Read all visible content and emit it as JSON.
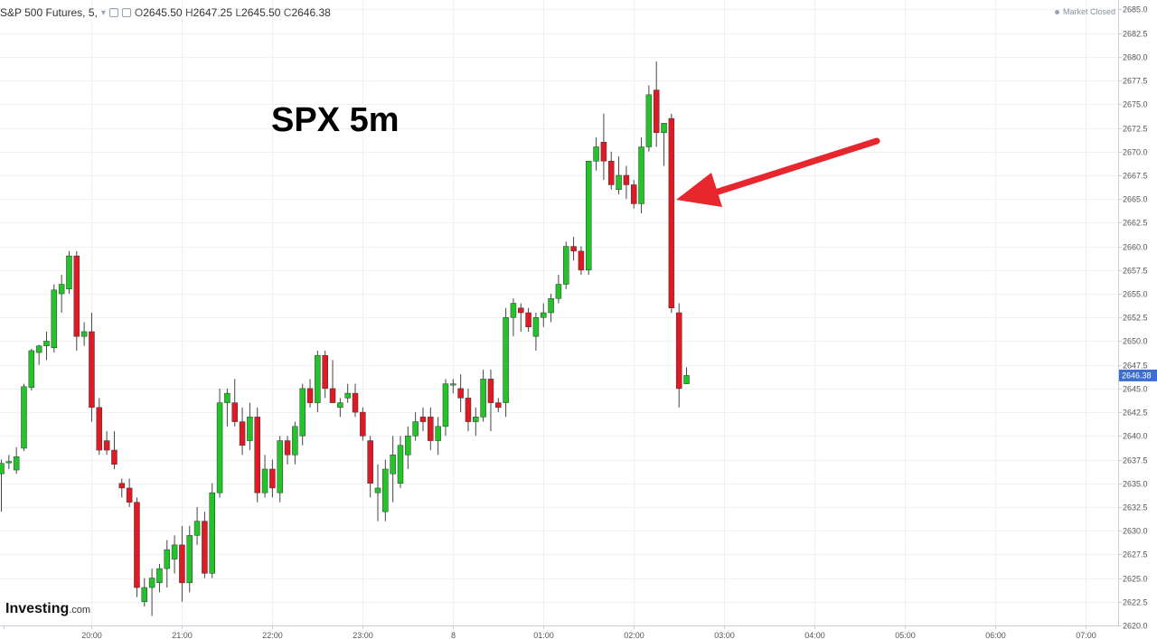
{
  "header": {
    "symbol": "S&P 500 Futures, 5,",
    "open_label": "O",
    "open": "2645.50",
    "high_label": "H",
    "high": "2647.25",
    "low_label": "L",
    "low": "2645.50",
    "close_label": "C",
    "close": "2646.38"
  },
  "status": {
    "market": "Market Closed"
  },
  "annotation": {
    "title": "SPX 5m"
  },
  "brand": {
    "name": "Investing",
    "domain": ".com"
  },
  "chart_data": {
    "type": "candlestick",
    "title": "SPX 5m",
    "up_color": "#22c42a",
    "down_color": "#e01a25",
    "last_price_color": "#3d6ecb",
    "last_price_label": "2646.38",
    "ylim": [
      2620,
      2686
    ],
    "y_ticks": [
      2620.0,
      2622.5,
      2625.0,
      2627.5,
      2630.0,
      2632.5,
      2635.0,
      2637.5,
      2640.0,
      2642.5,
      2645.0,
      2647.5,
      2650.0,
      2652.5,
      2655.0,
      2657.5,
      2660.0,
      2662.5,
      2665.0,
      2667.5,
      2670.0,
      2672.5,
      2675.0,
      2677.5,
      2680.0,
      2682.5,
      2685.0
    ],
    "y_tick_labels": [
      "2620.0",
      "2622.5",
      "2625.0",
      "2627.5",
      "2630.0",
      "2632.5",
      "2635.0",
      "2637.5",
      "2640.0",
      "2642.5",
      "2645.0",
      "2647.5",
      "2650.0",
      "2652.5",
      "2655.0",
      "2657.5",
      "2660.0",
      "2662.5",
      "2665.0",
      "2667.5",
      "2670.0",
      "2672.5",
      "2675.0",
      "2677.5",
      "2680.0",
      "2682.5",
      "2685.0"
    ],
    "x_tick_labels": [
      "20:00",
      "21:00",
      "22:00",
      "23:00",
      "8",
      "01:00",
      "02:00",
      "03:00",
      "04:00",
      "05:00",
      "06:00",
      "07:00"
    ],
    "x_tick_bars": [
      12,
      24,
      36,
      48,
      60,
      72,
      84,
      96,
      108,
      120,
      132,
      144
    ],
    "grid": true,
    "candles": [
      {
        "o": 2636.0,
        "h": 2637.5,
        "l": 2632.0,
        "c": 2637.1
      },
      {
        "o": 2637.2,
        "h": 2638.0,
        "l": 2636.5,
        "c": 2637.3
      },
      {
        "o": 2636.4,
        "h": 2638.8,
        "l": 2636.0,
        "c": 2637.8
      },
      {
        "o": 2638.7,
        "h": 2645.5,
        "l": 2638.4,
        "c": 2645.2
      },
      {
        "o": 2645.1,
        "h": 2649.2,
        "l": 2644.8,
        "c": 2649.0
      },
      {
        "o": 2648.8,
        "h": 2649.6,
        "l": 2647.5,
        "c": 2649.5
      },
      {
        "o": 2649.5,
        "h": 2651.0,
        "l": 2648.0,
        "c": 2650.0
      },
      {
        "o": 2649.3,
        "h": 2656.0,
        "l": 2648.8,
        "c": 2655.4
      },
      {
        "o": 2655.0,
        "h": 2657.0,
        "l": 2653.0,
        "c": 2656.0
      },
      {
        "o": 2655.5,
        "h": 2659.5,
        "l": 2655.0,
        "c": 2659.0
      },
      {
        "o": 2659.0,
        "h": 2659.5,
        "l": 2649.0,
        "c": 2650.5
      },
      {
        "o": 2650.5,
        "h": 2652.0,
        "l": 2649.5,
        "c": 2651.0
      },
      {
        "o": 2651.0,
        "h": 2653.0,
        "l": 2641.5,
        "c": 2643.0
      },
      {
        "o": 2643.0,
        "h": 2644.0,
        "l": 2638.0,
        "c": 2638.5
      },
      {
        "o": 2639.5,
        "h": 2640.5,
        "l": 2638.0,
        "c": 2638.5
      },
      {
        "o": 2638.5,
        "h": 2640.5,
        "l": 2636.5,
        "c": 2637.0
      },
      {
        "o": 2635.0,
        "h": 2635.5,
        "l": 2633.5,
        "c": 2634.5
      },
      {
        "o": 2634.5,
        "h": 2635.5,
        "l": 2632.5,
        "c": 2633.0
      },
      {
        "o": 2633.0,
        "h": 2633.5,
        "l": 2623.0,
        "c": 2624.0
      },
      {
        "o": 2622.5,
        "h": 2625.0,
        "l": 2622.0,
        "c": 2624.0
      },
      {
        "o": 2624.0,
        "h": 2626.0,
        "l": 2621.0,
        "c": 2625.0
      },
      {
        "o": 2624.5,
        "h": 2626.5,
        "l": 2623.5,
        "c": 2626.0
      },
      {
        "o": 2626.0,
        "h": 2629.0,
        "l": 2624.0,
        "c": 2628.0
      },
      {
        "o": 2627.0,
        "h": 2629.5,
        "l": 2625.5,
        "c": 2628.5
      },
      {
        "o": 2628.5,
        "h": 2630.5,
        "l": 2622.5,
        "c": 2624.5
      },
      {
        "o": 2624.5,
        "h": 2630.5,
        "l": 2623.5,
        "c": 2629.5
      },
      {
        "o": 2629.5,
        "h": 2632.5,
        "l": 2628.5,
        "c": 2631.0
      },
      {
        "o": 2631.0,
        "h": 2632.0,
        "l": 2625.0,
        "c": 2625.5
      },
      {
        "o": 2625.5,
        "h": 2635.0,
        "l": 2625.0,
        "c": 2634.0
      },
      {
        "o": 2634.0,
        "h": 2645.0,
        "l": 2633.5,
        "c": 2643.5
      },
      {
        "o": 2643.5,
        "h": 2645.0,
        "l": 2641.0,
        "c": 2644.5
      },
      {
        "o": 2643.5,
        "h": 2646.0,
        "l": 2641.0,
        "c": 2641.5
      },
      {
        "o": 2641.5,
        "h": 2643.0,
        "l": 2638.0,
        "c": 2639.0
      },
      {
        "o": 2639.5,
        "h": 2643.5,
        "l": 2638.5,
        "c": 2642.0
      },
      {
        "o": 2642.0,
        "h": 2643.0,
        "l": 2633.0,
        "c": 2634.0
      },
      {
        "o": 2634.0,
        "h": 2638.0,
        "l": 2633.5,
        "c": 2636.5
      },
      {
        "o": 2636.5,
        "h": 2637.5,
        "l": 2633.5,
        "c": 2634.5
      },
      {
        "o": 2634.0,
        "h": 2640.0,
        "l": 2633.0,
        "c": 2639.5
      },
      {
        "o": 2639.5,
        "h": 2640.0,
        "l": 2637.0,
        "c": 2638.0
      },
      {
        "o": 2638.0,
        "h": 2641.5,
        "l": 2637.0,
        "c": 2641.0
      },
      {
        "o": 2640.0,
        "h": 2645.5,
        "l": 2639.0,
        "c": 2645.0
      },
      {
        "o": 2645.0,
        "h": 2646.0,
        "l": 2643.0,
        "c": 2643.5
      },
      {
        "o": 2643.5,
        "h": 2649.0,
        "l": 2642.5,
        "c": 2648.5
      },
      {
        "o": 2648.5,
        "h": 2649.0,
        "l": 2644.0,
        "c": 2645.0
      },
      {
        "o": 2645.0,
        "h": 2648.0,
        "l": 2643.5,
        "c": 2643.5
      },
      {
        "o": 2643.0,
        "h": 2644.0,
        "l": 2642.0,
        "c": 2643.5
      },
      {
        "o": 2644.0,
        "h": 2645.5,
        "l": 2643.5,
        "c": 2644.5
      },
      {
        "o": 2644.5,
        "h": 2645.5,
        "l": 2642.0,
        "c": 2642.5
      },
      {
        "o": 2642.5,
        "h": 2643.0,
        "l": 2639.5,
        "c": 2640.0
      },
      {
        "o": 2639.5,
        "h": 2640.0,
        "l": 2633.5,
        "c": 2635.0
      },
      {
        "o": 2634.0,
        "h": 2637.0,
        "l": 2631.0,
        "c": 2634.5
      },
      {
        "o": 2632.0,
        "h": 2637.5,
        "l": 2631.0,
        "c": 2636.5
      },
      {
        "o": 2636.0,
        "h": 2640.0,
        "l": 2633.0,
        "c": 2638.0
      },
      {
        "o": 2635.0,
        "h": 2640.0,
        "l": 2634.5,
        "c": 2639.0
      },
      {
        "o": 2638.0,
        "h": 2641.0,
        "l": 2636.5,
        "c": 2640.0
      },
      {
        "o": 2640.0,
        "h": 2642.5,
        "l": 2639.5,
        "c": 2641.5
      },
      {
        "o": 2642.0,
        "h": 2643.0,
        "l": 2640.5,
        "c": 2641.5
      },
      {
        "o": 2642.0,
        "h": 2643.0,
        "l": 2638.5,
        "c": 2639.5
      },
      {
        "o": 2639.5,
        "h": 2642.0,
        "l": 2638.0,
        "c": 2641.0
      },
      {
        "o": 2641.0,
        "h": 2646.0,
        "l": 2640.0,
        "c": 2645.5
      },
      {
        "o": 2645.5,
        "h": 2646.0,
        "l": 2644.5,
        "c": 2645.5
      },
      {
        "o": 2645.0,
        "h": 2646.5,
        "l": 2642.5,
        "c": 2644.0
      },
      {
        "o": 2644.0,
        "h": 2645.0,
        "l": 2640.5,
        "c": 2641.5
      },
      {
        "o": 2641.5,
        "h": 2643.0,
        "l": 2640.0,
        "c": 2642.0
      },
      {
        "o": 2642.0,
        "h": 2647.0,
        "l": 2641.5,
        "c": 2646.0
      },
      {
        "o": 2646.0,
        "h": 2647.0,
        "l": 2640.5,
        "c": 2643.5
      },
      {
        "o": 2643.5,
        "h": 2644.0,
        "l": 2642.5,
        "c": 2643.0
      },
      {
        "o": 2643.5,
        "h": 2653.5,
        "l": 2642.0,
        "c": 2652.5
      },
      {
        "o": 2652.5,
        "h": 2654.5,
        "l": 2650.5,
        "c": 2654.0
      },
      {
        "o": 2653.5,
        "h": 2654.0,
        "l": 2651.0,
        "c": 2653.0
      },
      {
        "o": 2653.0,
        "h": 2653.5,
        "l": 2651.0,
        "c": 2651.5
      },
      {
        "o": 2650.5,
        "h": 2653.0,
        "l": 2649.0,
        "c": 2652.5
      },
      {
        "o": 2652.5,
        "h": 2654.0,
        "l": 2651.5,
        "c": 2653.0
      },
      {
        "o": 2653.0,
        "h": 2655.0,
        "l": 2652.0,
        "c": 2654.5
      },
      {
        "o": 2654.5,
        "h": 2657.0,
        "l": 2654.0,
        "c": 2656.0
      },
      {
        "o": 2656.0,
        "h": 2660.5,
        "l": 2655.5,
        "c": 2660.0
      },
      {
        "o": 2660.0,
        "h": 2661.0,
        "l": 2658.5,
        "c": 2659.5
      },
      {
        "o": 2659.5,
        "h": 2660.0,
        "l": 2657.0,
        "c": 2657.5
      },
      {
        "o": 2657.5,
        "h": 2669.0,
        "l": 2657.0,
        "c": 2669.0
      },
      {
        "o": 2669.0,
        "h": 2671.5,
        "l": 2668.0,
        "c": 2670.5
      },
      {
        "o": 2671.0,
        "h": 2674.0,
        "l": 2667.0,
        "c": 2669.0
      },
      {
        "o": 2669.0,
        "h": 2670.0,
        "l": 2666.0,
        "c": 2666.5
      },
      {
        "o": 2666.0,
        "h": 2669.5,
        "l": 2665.5,
        "c": 2667.5
      },
      {
        "o": 2667.5,
        "h": 2668.5,
        "l": 2665.0,
        "c": 2666.5
      },
      {
        "o": 2666.5,
        "h": 2667.0,
        "l": 2664.0,
        "c": 2664.5
      },
      {
        "o": 2664.5,
        "h": 2671.5,
        "l": 2663.5,
        "c": 2670.5
      },
      {
        "o": 2670.5,
        "h": 2677.0,
        "l": 2670.0,
        "c": 2676.0
      },
      {
        "o": 2676.5,
        "h": 2679.5,
        "l": 2670.5,
        "c": 2672.0
      },
      {
        "o": 2672.0,
        "h": 2673.0,
        "l": 2668.5,
        "c": 2673.0
      },
      {
        "o": 2673.5,
        "h": 2674.0,
        "l": 2653.0,
        "c": 2653.5
      },
      {
        "o": 2653.0,
        "h": 2654.0,
        "l": 2643.0,
        "c": 2645.0
      },
      {
        "o": 2645.5,
        "h": 2647.25,
        "l": 2645.5,
        "c": 2646.38
      }
    ]
  }
}
